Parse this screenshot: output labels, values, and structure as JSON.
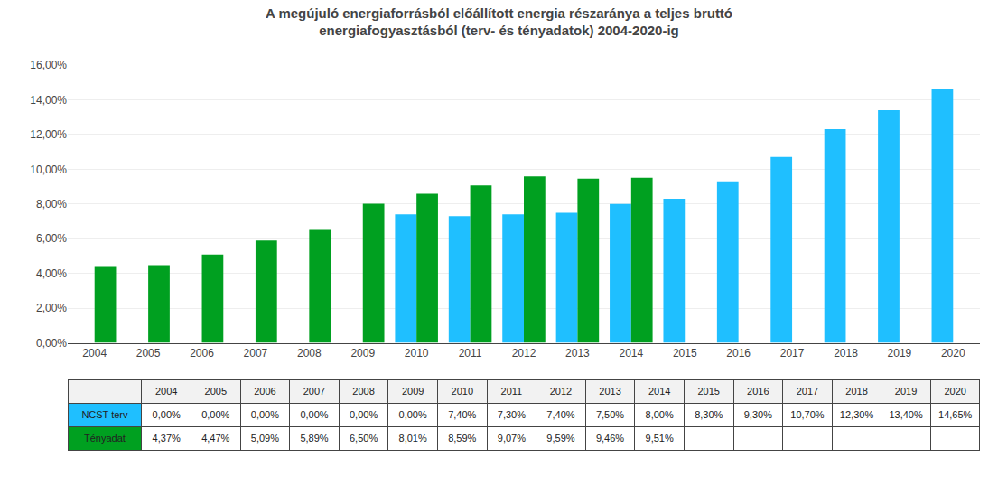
{
  "chart_data": {
    "type": "bar",
    "title": "A megújuló energiaforrásból előállított energia részaránya a teljes bruttó",
    "subtitle": "energiafogyasztásból (terv- és tényadatok) 2004-2020-ig",
    "categories": [
      "2004",
      "2005",
      "2006",
      "2007",
      "2008",
      "2009",
      "2010",
      "2011",
      "2012",
      "2013",
      "2014",
      "2015",
      "2016",
      "2017",
      "2018",
      "2019",
      "2020"
    ],
    "series": [
      {
        "name": "NCST terv",
        "color": "#1FBFFF",
        "values": [
          0.0,
          0.0,
          0.0,
          0.0,
          0.0,
          0.0,
          7.4,
          7.3,
          7.4,
          7.5,
          8.0,
          8.3,
          9.3,
          10.7,
          12.3,
          13.4,
          14.65
        ],
        "value_labels": [
          "0,00%",
          "0,00%",
          "0,00%",
          "0,00%",
          "0,00%",
          "0,00%",
          "7,40%",
          "7,30%",
          "7,40%",
          "7,50%",
          "8,00%",
          "8,30%",
          "9,30%",
          "10,70%",
          "12,30%",
          "13,40%",
          "14,65%"
        ]
      },
      {
        "name": "Tényadat",
        "color": "#00A020",
        "values": [
          4.37,
          4.47,
          5.09,
          5.89,
          6.5,
          8.01,
          8.59,
          9.07,
          9.59,
          9.46,
          9.51,
          null,
          null,
          null,
          null,
          null,
          null
        ],
        "value_labels": [
          "4,37%",
          "4,47%",
          "5,09%",
          "5,89%",
          "6,50%",
          "8,01%",
          "8,59%",
          "9,07%",
          "9,59%",
          "9,46%",
          "9,51%",
          null,
          null,
          null,
          null,
          null,
          null
        ]
      }
    ],
    "ylim": [
      0,
      16
    ],
    "yticks": [
      {
        "value": 0,
        "label": "0,00%"
      },
      {
        "value": 2,
        "label": "2,00%"
      },
      {
        "value": 4,
        "label": "4,00%"
      },
      {
        "value": 6,
        "label": "6,00%"
      },
      {
        "value": 8,
        "label": "8,00%"
      },
      {
        "value": 10,
        "label": "10,00%"
      },
      {
        "value": 12,
        "label": "12,00%"
      },
      {
        "value": 14,
        "label": "14,00%"
      },
      {
        "value": 16,
        "label": "16,00%"
      }
    ],
    "grid": true
  }
}
